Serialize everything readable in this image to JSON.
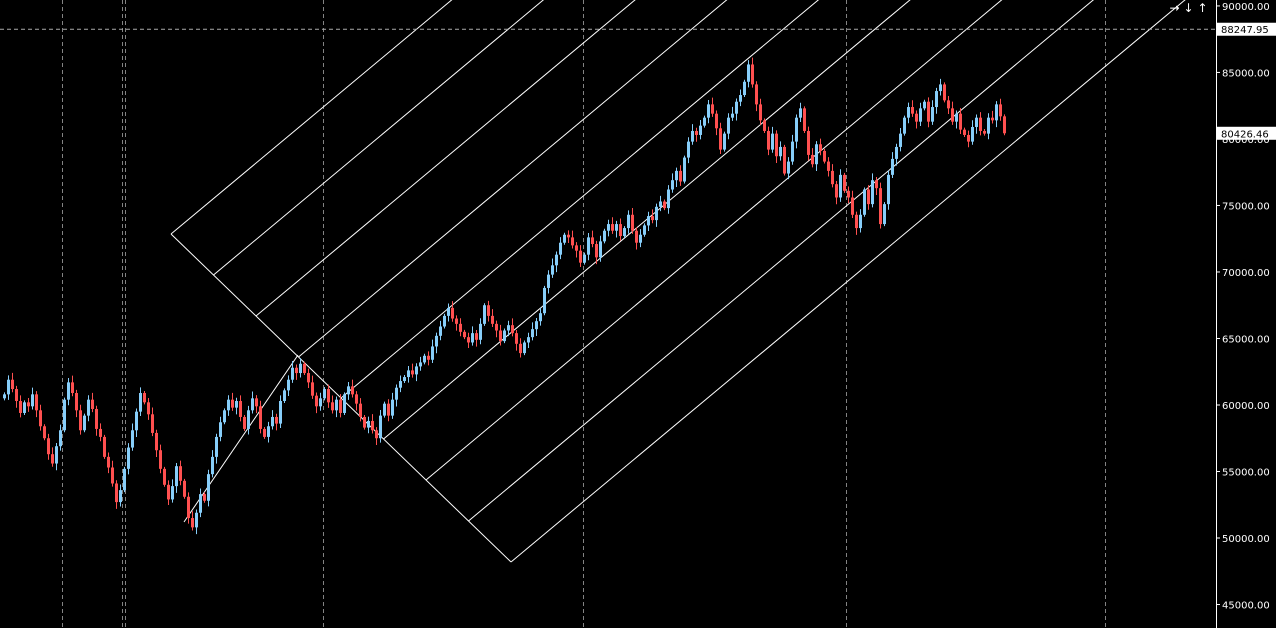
{
  "chart_data": {
    "type": "candlestick",
    "title": "",
    "xlabel": "",
    "ylabel": "",
    "ylim": [
      44000,
      90500
    ],
    "grid": true,
    "colors": {
      "background": "#000000",
      "up": "#87cefa",
      "down": "#ff5050",
      "pitchfork": "#ffffff",
      "grid": "#9a9a9a",
      "crosshair": "#aaaaaa",
      "axis_text": "#ffffff"
    },
    "y_ticks": [
      "90000.00",
      "85000.00",
      "80000.00",
      "75000.00",
      "70000.00",
      "65000.00",
      "60000.00",
      "55000.00",
      "50000.00",
      "45000.00"
    ],
    "y_tick_values": [
      90000,
      85000,
      80000,
      75000,
      70000,
      65000,
      60000,
      55000,
      50000,
      45000
    ],
    "crosshair_price": {
      "value": 88247.95,
      "label": "88247.95"
    },
    "last_price": {
      "value": 80426.46,
      "label": "80426.46"
    },
    "closes": [
      60800,
      61900,
      61200,
      60300,
      59400,
      60200,
      59900,
      60800,
      59600,
      58400,
      57500,
      56300,
      55600,
      56900,
      58100,
      60400,
      61700,
      60900,
      59600,
      58100,
      59200,
      60400,
      59700,
      58200,
      57600,
      56100,
      55300,
      54100,
      52700,
      53600,
      55200,
      56800,
      58100,
      59500,
      60900,
      60200,
      59300,
      57900,
      56600,
      55200,
      54000,
      52900,
      53900,
      55400,
      54300,
      53100,
      51500,
      50800,
      51900,
      53300,
      52800,
      54800,
      56100,
      57600,
      58700,
      59600,
      60400,
      59800,
      60300,
      59100,
      58200,
      59600,
      60500,
      59900,
      58200,
      57600,
      58400,
      59100,
      58600,
      60300,
      61100,
      61900,
      62800,
      62400,
      63100,
      62400,
      61700,
      60700,
      59900,
      60500,
      61200,
      60200,
      59600,
      60400,
      59400,
      60800,
      61400,
      60800,
      60100,
      59100,
      58300,
      58800,
      58100,
      57500,
      59200,
      60100,
      59200,
      60400,
      61300,
      61800,
      62100,
      62600,
      62300,
      62900,
      63200,
      63700,
      63400,
      64400,
      65200,
      65900,
      66700,
      67300,
      66500,
      66100,
      65500,
      65100,
      64700,
      65400,
      64900,
      66100,
      67500,
      66700,
      66100,
      65600,
      64800,
      65600,
      66000,
      65400,
      64600,
      63900,
      64700,
      65100,
      65700,
      66300,
      66900,
      68800,
      69800,
      70500,
      71300,
      72200,
      72800,
      72600,
      72000,
      71600,
      70700,
      71300,
      72600,
      72100,
      71100,
      72300,
      73100,
      73600,
      73100,
      73600,
      72700,
      73300,
      74300,
      73100,
      72200,
      72800,
      73500,
      74200,
      73900,
      74900,
      75300,
      74800,
      76200,
      76900,
      77600,
      76800,
      78600,
      79800,
      80600,
      80300,
      81000,
      81600,
      82600,
      81900,
      80800,
      79200,
      80400,
      81600,
      81900,
      82800,
      83300,
      84300,
      85600,
      84100,
      82600,
      81400,
      80600,
      79200,
      80400,
      78700,
      79400,
      77400,
      78300,
      79800,
      81600,
      82300,
      80600,
      78800,
      78100,
      79600,
      79100,
      78300,
      77600,
      76600,
      75600,
      77300,
      76100,
      75600,
      74300,
      73300,
      74300,
      76200,
      75100,
      76900,
      76300,
      73600,
      75100,
      77300,
      78500,
      79400,
      80400,
      81600,
      82400,
      81900,
      81300,
      82300,
      82800,
      81300,
      82400,
      83600,
      84100,
      82900,
      82300,
      81300,
      81900,
      80700,
      80300,
      79800,
      80900,
      81600,
      80600,
      80400,
      81600,
      81400,
      82600,
      81700,
      80426
    ]
  },
  "toolbar": {
    "scroll_right_icon": "→",
    "scroll_down_icon": "↓",
    "scroll_up_icon": "↑"
  }
}
